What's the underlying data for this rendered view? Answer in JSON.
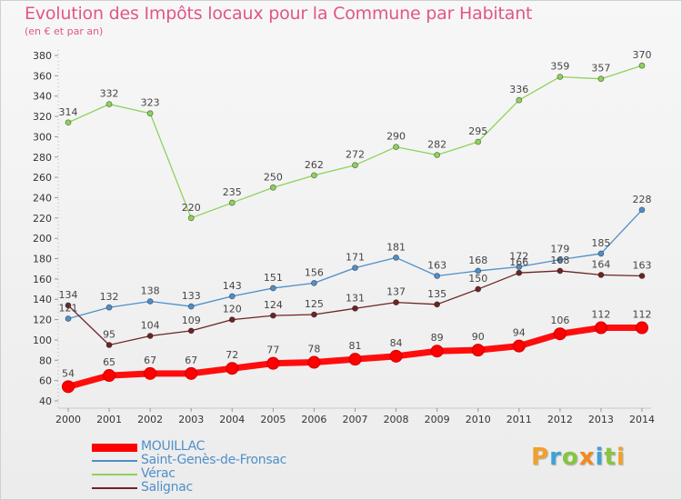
{
  "header": {
    "title": "Evolution des Impôts locaux pour la Commune par Habitant",
    "subtitle": "(en € et par an)"
  },
  "brand": {
    "letters": [
      "P",
      "r",
      "o",
      "x",
      "i",
      "t",
      "i"
    ],
    "colors": [
      "#f0a12a",
      "#3fa1d7",
      "#86c540",
      "#f08a1c",
      "#3fa1d7",
      "#86c540",
      "#f0a12a"
    ]
  },
  "chart_data": {
    "type": "line",
    "title": "Evolution des Impôts locaux pour la Commune par Habitant",
    "subtitle": "(en € et par an)",
    "x": [
      "2000",
      "2001",
      "2002",
      "2003",
      "2004",
      "2005",
      "2006",
      "2007",
      "2008",
      "2009",
      "2010",
      "2011",
      "2012",
      "2013",
      "2014"
    ],
    "ylim": [
      40,
      380
    ],
    "yticks": [
      40,
      60,
      80,
      100,
      120,
      140,
      160,
      180,
      200,
      220,
      240,
      260,
      280,
      300,
      320,
      340,
      360,
      380
    ],
    "grid": false,
    "legend_position": "bottom-left",
    "series": [
      {
        "name": "MOUILLAC",
        "color": "#ff0000",
        "values": [
          54,
          65,
          67,
          67,
          72,
          77,
          78,
          81,
          84,
          89,
          90,
          94,
          106,
          112,
          112
        ]
      },
      {
        "name": "Saint-Genès-de-Fronsac",
        "color": "#4f8fc9",
        "values": [
          121,
          132,
          138,
          133,
          143,
          151,
          156,
          171,
          181,
          163,
          168,
          172,
          179,
          185,
          228
        ]
      },
      {
        "name": "Vérac",
        "color": "#8fd25a",
        "values": [
          314,
          332,
          323,
          220,
          235,
          250,
          262,
          272,
          290,
          282,
          295,
          336,
          359,
          357,
          370
        ]
      },
      {
        "name": "Salignac",
        "color": "#6e2424",
        "values": [
          134,
          95,
          104,
          109,
          120,
          124,
          125,
          131,
          137,
          135,
          150,
          166,
          168,
          164,
          163
        ]
      }
    ]
  }
}
